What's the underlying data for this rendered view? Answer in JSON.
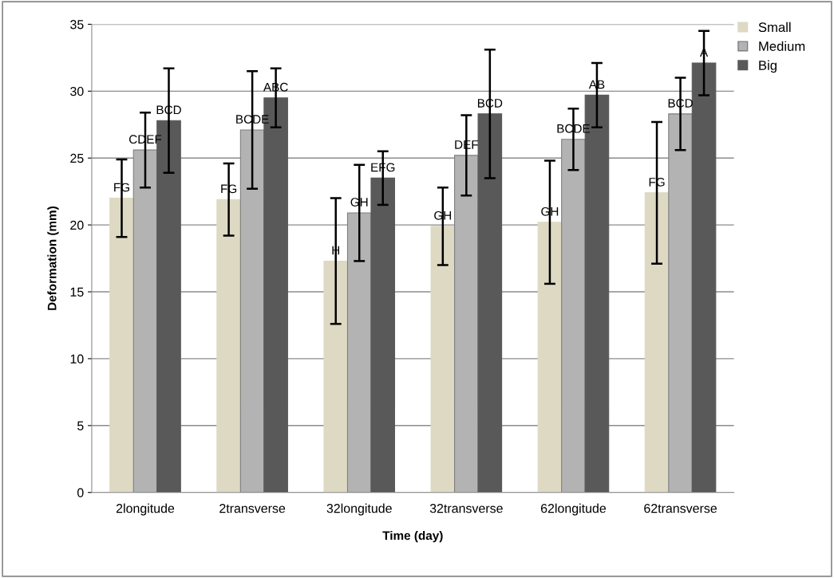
{
  "chart_data": {
    "type": "bar",
    "xlabel": "Time (day)",
    "ylabel": "Deformation (mm)",
    "categories": [
      "2longitude",
      "2transverse",
      "32longitude",
      "32transverse",
      "62longitude",
      "62transverse"
    ],
    "series": [
      {
        "name": "Small",
        "color": "#ddd9c3",
        "values": [
          22.0,
          21.9,
          17.3,
          19.9,
          20.2,
          22.4
        ],
        "errors": [
          2.9,
          2.7,
          4.7,
          2.9,
          4.6,
          5.3
        ],
        "value_labels": [
          "FG",
          "FG",
          "H",
          "GH",
          "GH",
          "FG"
        ]
      },
      {
        "name": "Medium",
        "color": "#b3b3b3",
        "values": [
          25.6,
          27.1,
          20.9,
          25.2,
          26.4,
          28.3
        ],
        "errors": [
          2.8,
          4.4,
          3.6,
          3.0,
          2.3,
          2.7
        ],
        "value_labels": [
          "CDEF",
          "BCDE",
          "GH",
          "DEF",
          "BCDE",
          "BCD"
        ]
      },
      {
        "name": "Big",
        "color": "#595959",
        "values": [
          27.8,
          29.5,
          23.5,
          28.3,
          29.7,
          32.1
        ],
        "errors": [
          3.9,
          2.2,
          2.0,
          4.8,
          2.4,
          2.4
        ],
        "value_labels": [
          "BCD",
          "ABC",
          "EFG",
          "BCD",
          "AB",
          "A"
        ]
      }
    ],
    "ylim": [
      0,
      35
    ],
    "yticks": [
      0,
      5,
      10,
      15,
      20,
      25,
      30,
      35
    ],
    "grid": "y",
    "legend": "top right"
  }
}
